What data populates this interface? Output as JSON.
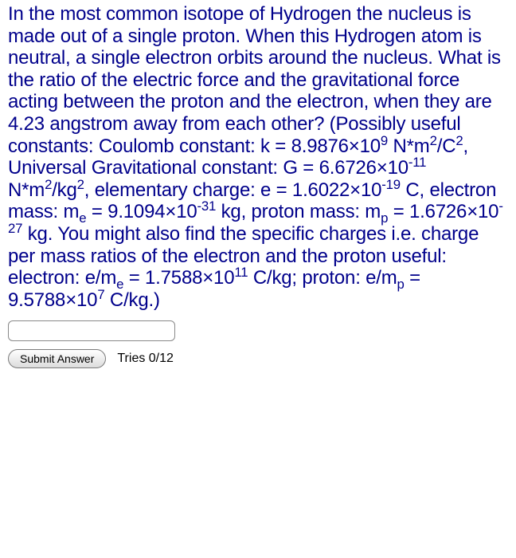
{
  "question": {
    "intro": "In the most common isotope of Hydrogen the nucleus is made out of a single proton. When this Hydrogen atom is neutral, a single electron orbits around the nucleus. What is the ratio of the electric force and the gravitational force acting between the proton and the electron, when they are 4.23 angstrom away from each other? (Possibly useful constants: Coulomb constant: k = ",
    "coulomb_k": "8.9876×10",
    "coulomb_k_exp": "9",
    "coulomb_k_unit": " N*m",
    "coulomb_k_unit_exp": "2",
    "coulomb_k_unit2": "/C",
    "coulomb_k_unit2_exp": "2",
    "g_intro": ", Universal Gravitational constant: G = 6.6726×10",
    "g_exp": "-11",
    "g_unit": " N*m",
    "g_unit_exp": "2",
    "g_unit2": "/kg",
    "g_unit2_exp": "2",
    "e_intro": ", elementary charge: e = 1.6022×10",
    "e_exp": "-19",
    "e_unit": " C, electron mass: m",
    "e_sub": "e",
    "me_val": " = 9.1094×10",
    "me_exp": "-31",
    "me_unit": " kg, proton mass: m",
    "mp_sub": "p",
    "mp_val": " = 1.6726×10",
    "mp_exp": "-27",
    "mp_unit": " kg. You might also find the specific charges i.e. charge per mass ratios of the electron and the proton useful: electron: e/m",
    "eme_sub": "e",
    "eme_val": " = 1.7588×10",
    "eme_exp": "11",
    "eme_unit": " C/kg; proton: e/m",
    "emp_sub": "p",
    "emp_val": " = 9.5788×10",
    "emp_exp": "7",
    "emp_unit": " C/kg.)"
  },
  "input": {
    "value": ""
  },
  "submit": {
    "label": "Submit Answer"
  },
  "tries": {
    "text": "Tries 0/12"
  },
  "colors": {
    "text": "#00008b",
    "background": "#ffffff"
  }
}
